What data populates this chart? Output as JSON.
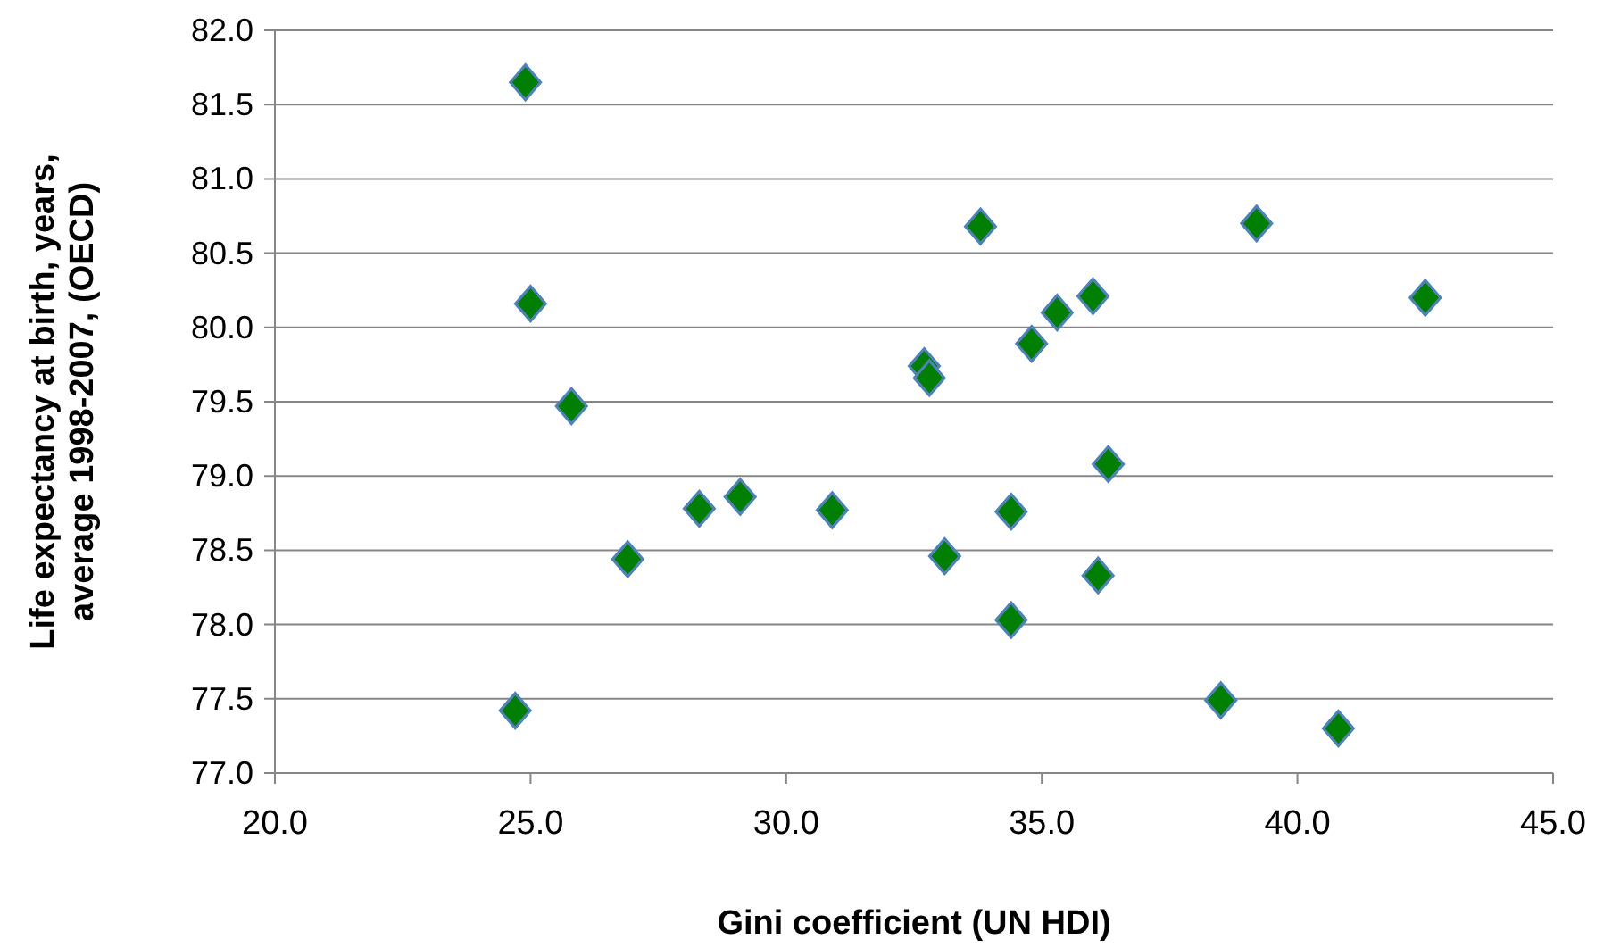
{
  "chart_data": {
    "type": "scatter",
    "xlabel": "Gini coefficient (UN HDI)",
    "ylabel": "Life expectancy at birth, years, average 1998-2007,  (OECD)",
    "xlim": [
      20,
      45
    ],
    "ylim": [
      77,
      82
    ],
    "xticks": [
      {
        "value": 20,
        "label": "20.0"
      },
      {
        "value": 25,
        "label": "25.0"
      },
      {
        "value": 30,
        "label": "30.0"
      },
      {
        "value": 35,
        "label": "35.0"
      },
      {
        "value": 40,
        "label": "40.0"
      },
      {
        "value": 45,
        "label": "45.0"
      }
    ],
    "yticks": [
      {
        "value": 77,
        "label": "77.0"
      },
      {
        "value": 77.5,
        "label": "77.5"
      },
      {
        "value": 78,
        "label": "78.0"
      },
      {
        "value": 78.5,
        "label": "78.5"
      },
      {
        "value": 79,
        "label": "79.0"
      },
      {
        "value": 79.5,
        "label": "79.5"
      },
      {
        "value": 80,
        "label": "80.0"
      },
      {
        "value": 80.5,
        "label": "80.5"
      },
      {
        "value": 81,
        "label": "81.0"
      },
      {
        "value": 81.5,
        "label": "81.5"
      },
      {
        "value": 82,
        "label": "82.0"
      }
    ],
    "grid": "y",
    "marker": "diamond",
    "series": [
      {
        "color": "#007f00",
        "x": [
          24.9,
          25.0,
          25.8,
          26.9,
          28.3,
          29.1,
          30.9,
          24.7,
          32.7,
          32.8,
          33.8,
          39.2,
          42.5,
          36.0,
          35.3,
          34.8,
          36.3,
          34.4,
          33.1,
          36.1,
          34.4,
          38.5,
          40.8
        ],
        "values": [
          81.65,
          80.16,
          79.47,
          78.44,
          78.78,
          78.86,
          78.77,
          77.42,
          79.74,
          79.66,
          80.68,
          80.7,
          80.2,
          80.21,
          80.1,
          79.89,
          79.08,
          78.76,
          78.46,
          78.33,
          78.03,
          77.49,
          77.3
        ]
      }
    ]
  }
}
